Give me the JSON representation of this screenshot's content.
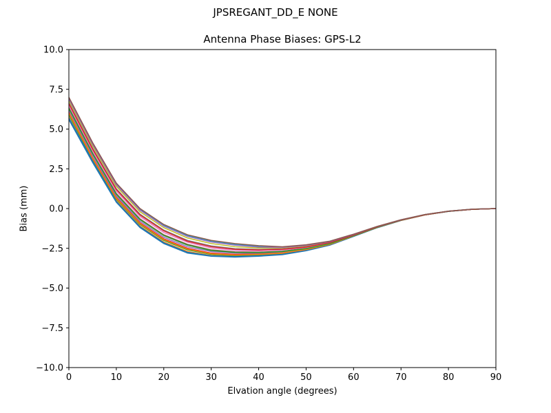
{
  "figure": {
    "suptitle": "JPSREGANT_DD_E  NONE"
  },
  "chart_data": {
    "type": "line",
    "title": "Antenna Phase Biases: GPS-L2",
    "xlabel": "Elvation angle (degrees)",
    "ylabel": "Bias (mm)",
    "xlim": [
      0,
      90
    ],
    "ylim": [
      -10,
      10
    ],
    "xticks": [
      0,
      10,
      20,
      30,
      40,
      50,
      60,
      70,
      80,
      90
    ],
    "xtick_labels": [
      "0",
      "10",
      "20",
      "30",
      "40",
      "50",
      "60",
      "70",
      "80",
      "90"
    ],
    "yticks": [
      -10,
      -7.5,
      -5,
      -2.5,
      0,
      2.5,
      5,
      7.5,
      10
    ],
    "ytick_labels": [
      "−10.0",
      "−7.5",
      "−5.0",
      "−2.5",
      "0.0",
      "2.5",
      "5.0",
      "7.5",
      "10.0"
    ],
    "grid": false,
    "legend": "none",
    "x": [
      0,
      5,
      10,
      15,
      20,
      25,
      30,
      35,
      40,
      45,
      50,
      55,
      60,
      65,
      70,
      75,
      80,
      85,
      90
    ],
    "series_colors": [
      "#1f77b4",
      "#ff7f0e",
      "#2ca02c",
      "#d62728",
      "#9467bd",
      "#8c564b",
      "#e377c2",
      "#7f7f7f",
      "#bcbd22",
      "#17becf"
    ],
    "series": [
      {
        "values": [
          5.6,
          2.9,
          0.4,
          -1.2,
          -2.2,
          -2.8,
          -3.0,
          -3.05,
          -3.0,
          -2.9,
          -2.65,
          -2.3,
          -1.75,
          -1.2,
          -0.75,
          -0.4,
          -0.18,
          -0.05,
          0.0
        ]
      },
      {
        "values": [
          5.75,
          3.0,
          0.5,
          -1.1,
          -2.1,
          -2.7,
          -2.95,
          -3.0,
          -2.95,
          -2.85,
          -2.62,
          -2.28,
          -1.74,
          -1.19,
          -0.75,
          -0.4,
          -0.18,
          -0.05,
          0.0
        ]
      },
      {
        "values": [
          5.9,
          3.1,
          0.6,
          -1.0,
          -2.0,
          -2.6,
          -2.88,
          -2.95,
          -2.9,
          -2.8,
          -2.6,
          -2.26,
          -1.73,
          -1.19,
          -0.74,
          -0.4,
          -0.18,
          -0.05,
          0.0
        ]
      },
      {
        "values": [
          6.05,
          3.2,
          0.7,
          -0.9,
          -1.9,
          -2.5,
          -2.8,
          -2.88,
          -2.85,
          -2.77,
          -2.57,
          -2.24,
          -1.72,
          -1.18,
          -0.74,
          -0.4,
          -0.17,
          -0.05,
          0.0
        ]
      },
      {
        "values": [
          6.2,
          3.35,
          0.8,
          -0.8,
          -1.8,
          -2.4,
          -2.7,
          -2.8,
          -2.8,
          -2.73,
          -2.54,
          -2.22,
          -1.71,
          -1.18,
          -0.74,
          -0.4,
          -0.17,
          -0.05,
          0.0
        ]
      },
      {
        "values": [
          6.35,
          3.5,
          0.95,
          -0.65,
          -1.65,
          -2.25,
          -2.6,
          -2.72,
          -2.74,
          -2.68,
          -2.5,
          -2.2,
          -1.7,
          -1.17,
          -0.73,
          -0.39,
          -0.17,
          -0.05,
          0.0
        ]
      },
      {
        "values": [
          6.5,
          3.65,
          1.1,
          -0.5,
          -1.5,
          -2.12,
          -2.48,
          -2.62,
          -2.65,
          -2.6,
          -2.45,
          -2.16,
          -1.68,
          -1.16,
          -0.73,
          -0.39,
          -0.17,
          -0.05,
          0.0
        ]
      },
      {
        "values": [
          6.65,
          3.8,
          1.25,
          -0.35,
          -1.35,
          -2.0,
          -2.35,
          -2.52,
          -2.57,
          -2.53,
          -2.4,
          -2.13,
          -1.66,
          -1.15,
          -0.72,
          -0.39,
          -0.17,
          -0.05,
          0.0
        ]
      },
      {
        "values": [
          6.8,
          3.95,
          1.4,
          -0.2,
          -1.2,
          -1.85,
          -2.2,
          -2.4,
          -2.48,
          -2.47,
          -2.35,
          -2.1,
          -1.64,
          -1.14,
          -0.72,
          -0.38,
          -0.16,
          -0.04,
          0.0
        ]
      },
      {
        "values": [
          6.95,
          4.1,
          1.55,
          -0.05,
          -1.05,
          -1.7,
          -2.05,
          -2.25,
          -2.38,
          -2.42,
          -2.3,
          -2.06,
          -1.62,
          -1.13,
          -0.71,
          -0.38,
          -0.16,
          -0.04,
          0.0
        ]
      },
      {
        "values": [
          5.7,
          3.0,
          0.45,
          -1.15,
          -2.15,
          -2.75,
          -2.97,
          -3.02,
          -2.97,
          -2.88,
          -2.63,
          -2.29,
          -1.75,
          -1.2,
          -0.75,
          -0.4,
          -0.18,
          -0.05,
          0.0
        ]
      },
      {
        "values": [
          6.0,
          3.15,
          0.65,
          -0.95,
          -1.95,
          -2.55,
          -2.84,
          -2.92,
          -2.88,
          -2.79,
          -2.58,
          -2.25,
          -1.72,
          -1.18,
          -0.74,
          -0.4,
          -0.17,
          -0.05,
          0.0
        ]
      },
      {
        "values": [
          6.3,
          3.45,
          0.9,
          -0.7,
          -1.7,
          -2.3,
          -2.64,
          -2.76,
          -2.77,
          -2.7,
          -2.52,
          -2.21,
          -1.7,
          -1.17,
          -0.73,
          -0.39,
          -0.17,
          -0.05,
          0.0
        ]
      },
      {
        "values": [
          6.6,
          3.75,
          1.2,
          -0.4,
          -1.4,
          -2.05,
          -2.4,
          -2.56,
          -2.6,
          -2.56,
          -2.42,
          -2.14,
          -1.67,
          -1.15,
          -0.72,
          -0.39,
          -0.17,
          -0.05,
          0.0
        ]
      },
      {
        "values": [
          6.9,
          4.05,
          1.5,
          -0.1,
          -1.1,
          -1.75,
          -2.1,
          -2.3,
          -2.42,
          -2.44,
          -2.32,
          -2.08,
          -1.63,
          -1.13,
          -0.71,
          -0.38,
          -0.16,
          -0.04,
          0.0
        ]
      },
      {
        "values": [
          7.0,
          4.15,
          1.6,
          0.0,
          -1.0,
          -1.65,
          -2.0,
          -2.2,
          -2.33,
          -2.4,
          -2.28,
          -2.05,
          -1.61,
          -1.12,
          -0.7,
          -0.38,
          -0.16,
          -0.04,
          0.0
        ]
      }
    ]
  }
}
